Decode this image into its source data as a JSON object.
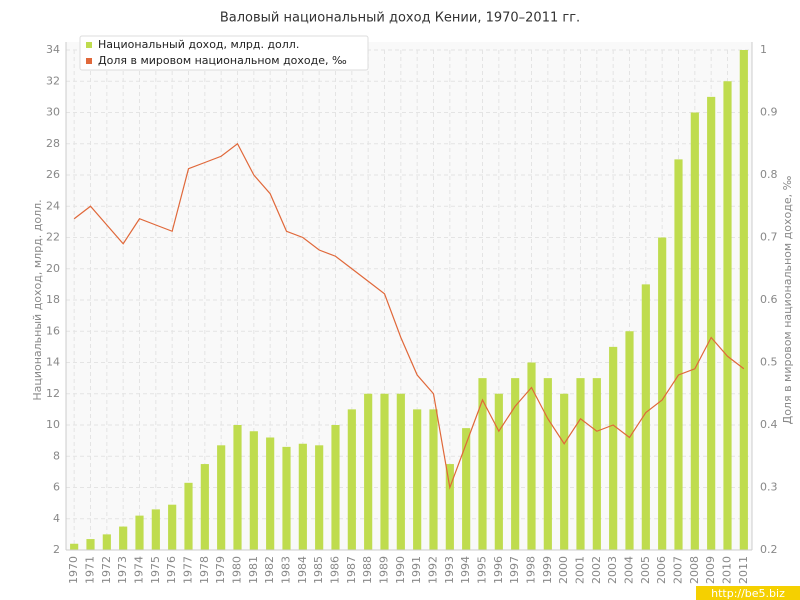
{
  "chart_data": {
    "type": "bar_line",
    "title": "Валовый национальный доход Кении, 1970–2011 гг.",
    "y_label": "Национальный доход, млрд. долл.",
    "y2_label": "Доля в мировом национальном доходе, ‰",
    "watermark": "http://be5.biz",
    "categories": [
      "1970",
      "1971",
      "1972",
      "1973",
      "1974",
      "1975",
      "1976",
      "1977",
      "1978",
      "1979",
      "1980",
      "1981",
      "1982",
      "1983",
      "1984",
      "1985",
      "1986",
      "1987",
      "1988",
      "1989",
      "1990",
      "1991",
      "1992",
      "1993",
      "1994",
      "1995",
      "1996",
      "1997",
      "1998",
      "1999",
      "2000",
      "2001",
      "2002",
      "2003",
      "2004",
      "2005",
      "2006",
      "2007",
      "2008",
      "2009",
      "2010",
      "2011"
    ],
    "series": [
      {
        "name": "Национальный доход, млрд. долл.",
        "color": "#bfdc4e",
        "type": "bar",
        "values": [
          2.4,
          2.7,
          3.0,
          3.5,
          4.2,
          4.6,
          4.9,
          6.3,
          7.5,
          8.7,
          10.0,
          9.6,
          9.2,
          8.6,
          8.8,
          8.7,
          10.0,
          11.0,
          12.0,
          12.0,
          12.0,
          11.0,
          11.0,
          7.5,
          9.8,
          13.0,
          12.0,
          13.0,
          14.0,
          13.0,
          12.0,
          13.0,
          13.0,
          15.0,
          16.0,
          19.0,
          22.0,
          27.0,
          30.0,
          31.0,
          32.0,
          34.0
        ]
      },
      {
        "name": "Доля в мировом национальном доходе, ‰",
        "color": "#e0683a",
        "type": "line",
        "axis": "y2",
        "values": [
          0.73,
          0.75,
          0.72,
          0.69,
          0.73,
          0.72,
          0.71,
          0.81,
          0.82,
          0.83,
          0.85,
          0.8,
          0.77,
          0.71,
          0.7,
          0.68,
          0.67,
          0.65,
          0.63,
          0.61,
          0.54,
          0.48,
          0.45,
          0.3,
          0.37,
          0.44,
          0.39,
          0.43,
          0.46,
          0.41,
          0.37,
          0.41,
          0.39,
          0.4,
          0.38,
          0.42,
          0.44,
          0.48,
          0.49,
          0.54,
          0.51,
          0.49
        ]
      }
    ],
    "ylim": [
      2,
      34
    ],
    "yticks": [
      2,
      4,
      6,
      8,
      10,
      12,
      14,
      16,
      18,
      20,
      22,
      24,
      26,
      28,
      30,
      32,
      34
    ],
    "y2lim": [
      0.2,
      1
    ],
    "y2ticks": [
      0.2,
      0.3,
      0.4,
      0.5,
      0.6,
      0.7,
      0.8,
      0.9,
      1
    ],
    "grid": true,
    "legend": "top-left"
  }
}
